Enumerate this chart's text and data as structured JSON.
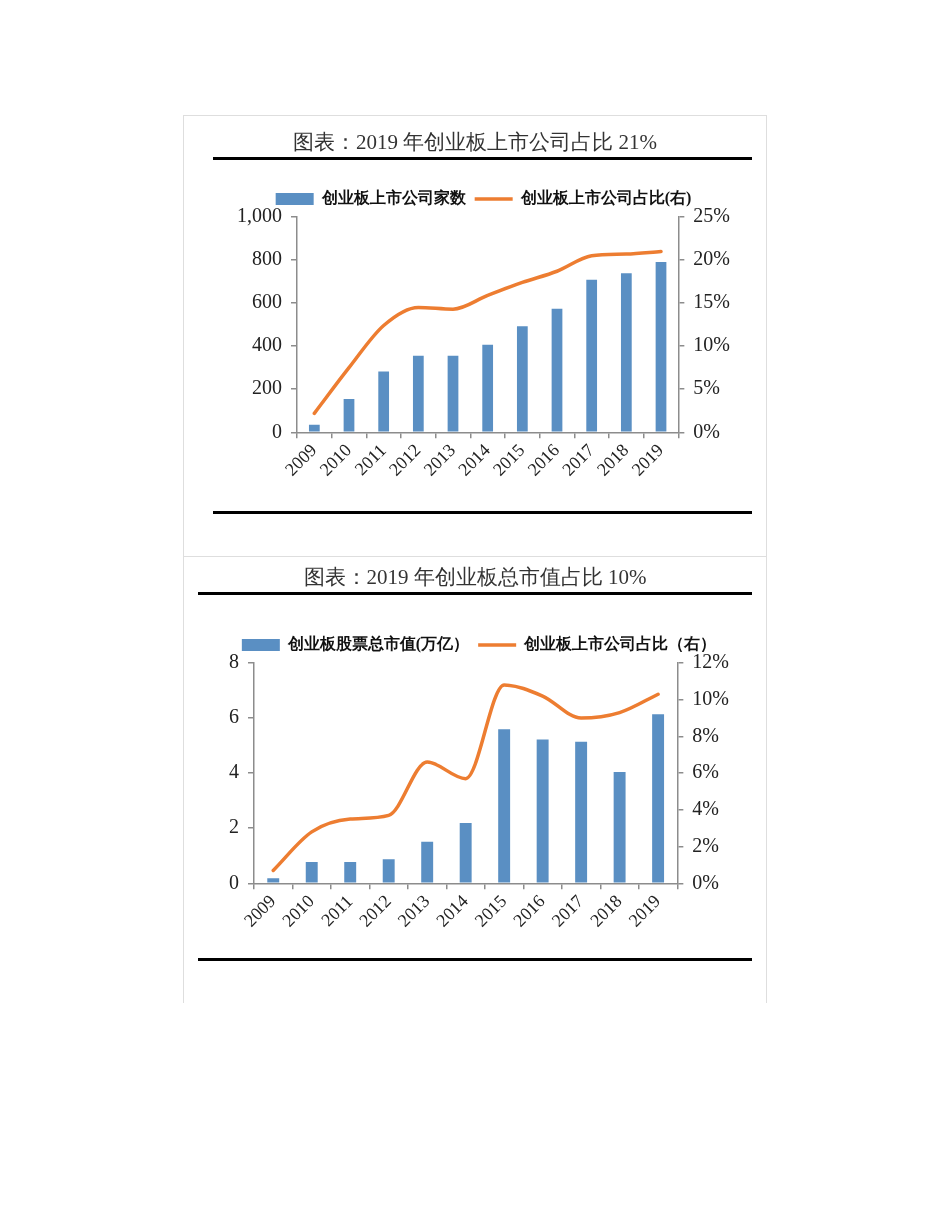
{
  "chart_data": [
    {
      "type": "bar",
      "title": "图表：2019 年创业板上市公司占比 21%",
      "categories": [
        "2009",
        "2010",
        "2011",
        "2012",
        "2013",
        "2014",
        "2015",
        "2016",
        "2017",
        "2018",
        "2019"
      ],
      "series": [
        {
          "name": "创业板上市公司家数",
          "color": "#5a8fc3",
          "values": [
            35,
            155,
            282,
            356,
            356,
            407,
            492,
            574,
            709,
            739,
            791
          ]
        },
        {
          "name": "创业板上市公司占比(右)",
          "type": "line",
          "axis": "y2",
          "color": "#ed7d31",
          "values": [
            2.2,
            7.5,
            12.4,
            14.5,
            14.3,
            15.9,
            17.4,
            18.7,
            20.5,
            20.7,
            21.0
          ]
        }
      ],
      "ylim": [
        0,
        1000
      ],
      "yticks": [
        0,
        200,
        400,
        600,
        800,
        {
          "value": 1000,
          "label": "1,000"
        }
      ],
      "y2lim": [
        0,
        25
      ],
      "y2ticks": [
        {
          "value": 0,
          "label": "0%"
        },
        {
          "value": 5,
          "label": "5%"
        },
        {
          "value": 10,
          "label": "10%"
        },
        {
          "value": 15,
          "label": "15%"
        },
        {
          "value": 20,
          "label": "20%"
        },
        {
          "value": 25,
          "label": "25%"
        }
      ],
      "legend": "top",
      "marker": "none"
    },
    {
      "type": "bar",
      "title": "图表：2019 年创业板总市值占比 10%",
      "categories": [
        "2009",
        "2010",
        "2011",
        "2012",
        "2013",
        "2014",
        "2015",
        "2016",
        "2017",
        "2018",
        "2019"
      ],
      "series": [
        {
          "name": "创业板股票总市值(万亿）",
          "color": "#5a8fc3",
          "values": [
            0.18,
            0.77,
            0.77,
            0.87,
            1.51,
            2.19,
            5.59,
            5.22,
            5.14,
            4.04,
            6.14
          ]
        },
        {
          "name": "创业板上市公司占比（右）",
          "type": "line",
          "axis": "y2",
          "color": "#ed7d31",
          "values": [
            0.7,
            2.8,
            3.5,
            3.7,
            6.6,
            5.7,
            10.8,
            10.2,
            9.0,
            9.3,
            10.3
          ]
        }
      ],
      "ylim": [
        0,
        8
      ],
      "yticks": [
        0,
        2,
        4,
        6,
        8
      ],
      "y2lim": [
        0,
        12
      ],
      "y2ticks": [
        {
          "value": 0,
          "label": "0%"
        },
        {
          "value": 2,
          "label": "2%"
        },
        {
          "value": 4,
          "label": "4%"
        },
        {
          "value": 6,
          "label": "6%"
        },
        {
          "value": 8,
          "label": "8%"
        },
        {
          "value": 10,
          "label": "10%"
        },
        {
          "value": 12,
          "label": "12%"
        }
      ],
      "legend": "top",
      "marker": "none"
    }
  ]
}
